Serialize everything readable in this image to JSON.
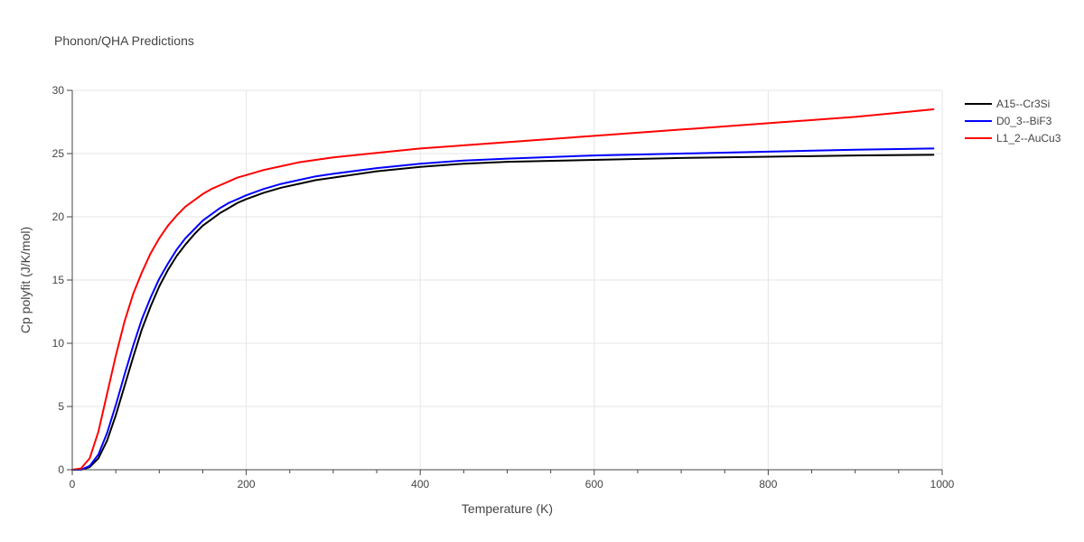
{
  "chart_data": {
    "type": "line",
    "title": "Phonon/QHA Predictions",
    "xlabel": "Temperature (K)",
    "ylabel": "Cp polyfit (J/K/mol)",
    "xlim": [
      0,
      1000
    ],
    "ylim": [
      0,
      30
    ],
    "xticks": [
      0,
      200,
      400,
      600,
      800,
      1000
    ],
    "xtick_labels": [
      "0",
      "200",
      "400",
      "600",
      "800",
      "1000"
    ],
    "xminor": [
      50,
      100,
      150,
      250,
      300,
      350,
      450,
      500,
      550,
      650,
      700,
      750,
      850,
      900,
      950
    ],
    "yticks": [
      0,
      5,
      10,
      15,
      20,
      25,
      30
    ],
    "ytick_labels": [
      "0",
      "5",
      "10",
      "15",
      "20",
      "25",
      "30"
    ],
    "grid": true,
    "legend_position": "top-right",
    "series": [
      {
        "name": "A15--Cr3Si",
        "color": "#000000",
        "x": [
          0,
          10,
          20,
          30,
          40,
          50,
          60,
          70,
          80,
          90,
          100,
          110,
          120,
          130,
          140,
          150,
          160,
          170,
          180,
          190,
          200,
          220,
          240,
          260,
          280,
          300,
          350,
          400,
          450,
          500,
          600,
          700,
          800,
          900,
          990
        ],
        "y": [
          0,
          0,
          0.2,
          0.9,
          2.3,
          4.3,
          6.6,
          8.9,
          11.1,
          12.9,
          14.5,
          15.8,
          16.9,
          17.8,
          18.6,
          19.3,
          19.8,
          20.3,
          20.7,
          21.1,
          21.4,
          21.9,
          22.3,
          22.6,
          22.9,
          23.1,
          23.6,
          23.95,
          24.2,
          24.35,
          24.5,
          24.65,
          24.75,
          24.85,
          24.9
        ]
      },
      {
        "name": "D0_3--BiF3",
        "color": "#0000ff",
        "x": [
          0,
          10,
          20,
          30,
          40,
          50,
          60,
          70,
          80,
          90,
          100,
          110,
          120,
          130,
          140,
          150,
          160,
          170,
          180,
          190,
          200,
          220,
          240,
          260,
          280,
          300,
          350,
          400,
          450,
          500,
          600,
          700,
          800,
          900,
          990
        ],
        "y": [
          0,
          0,
          0.3,
          1.2,
          2.9,
          5.1,
          7.5,
          9.8,
          11.9,
          13.6,
          15.1,
          16.3,
          17.4,
          18.3,
          19.0,
          19.7,
          20.2,
          20.7,
          21.1,
          21.4,
          21.7,
          22.2,
          22.6,
          22.9,
          23.2,
          23.4,
          23.85,
          24.2,
          24.45,
          24.6,
          24.85,
          25.0,
          25.15,
          25.3,
          25.4
        ]
      },
      {
        "name": "L1_2--AuCu3",
        "color": "#ff0000",
        "x": [
          0,
          10,
          20,
          30,
          40,
          50,
          60,
          70,
          80,
          90,
          100,
          110,
          120,
          130,
          140,
          150,
          160,
          170,
          180,
          190,
          200,
          220,
          240,
          260,
          280,
          300,
          350,
          400,
          450,
          500,
          600,
          700,
          800,
          900,
          990
        ],
        "y": [
          0,
          0.1,
          0.9,
          3.0,
          6.0,
          9.0,
          11.7,
          13.9,
          15.6,
          17.1,
          18.3,
          19.3,
          20.1,
          20.8,
          21.3,
          21.8,
          22.2,
          22.5,
          22.8,
          23.1,
          23.3,
          23.7,
          24.0,
          24.3,
          24.5,
          24.7,
          25.05,
          25.4,
          25.65,
          25.9,
          26.4,
          26.9,
          27.4,
          27.9,
          28.5
        ]
      }
    ]
  }
}
